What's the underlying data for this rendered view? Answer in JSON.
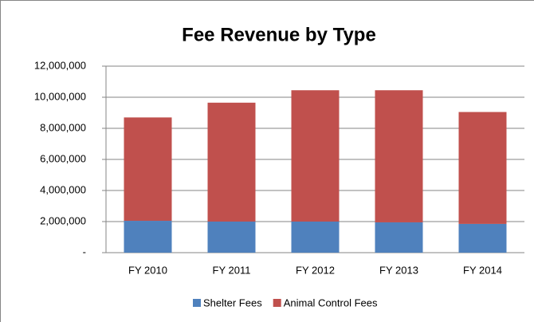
{
  "chart_data": {
    "type": "bar",
    "stacked": true,
    "title": "Fee Revenue by Type",
    "categories": [
      "FY 2010",
      "FY 2011",
      "FY 2012",
      "FY 2013",
      "FY 2014"
    ],
    "series": [
      {
        "name": "Shelter Fees",
        "color": "#4f81bd",
        "values": [
          2050000,
          2000000,
          2000000,
          1950000,
          1850000
        ]
      },
      {
        "name": "Animal Control Fees",
        "color": "#c0504d",
        "values": [
          6650000,
          7650000,
          8450000,
          8500000,
          7200000
        ]
      }
    ],
    "ylim": [
      0,
      12000000
    ],
    "yticks": [
      {
        "value": 0,
        "label": "-"
      },
      {
        "value": 2000000,
        "label": "2,000,000"
      },
      {
        "value": 4000000,
        "label": "4,000,000"
      },
      {
        "value": 6000000,
        "label": "6,000,000"
      },
      {
        "value": 8000000,
        "label": "8,000,000"
      },
      {
        "value": 10000000,
        "label": "10,000,000"
      },
      {
        "value": 12000000,
        "label": "12,000,000"
      }
    ],
    "grid": true,
    "legend": "bottom"
  }
}
